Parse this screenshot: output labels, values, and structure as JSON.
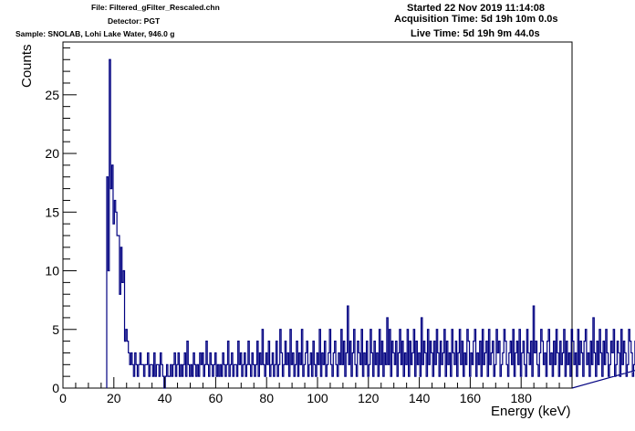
{
  "header": {
    "file": "File: Filtered_gFilter_Rescaled.chn",
    "detector": "Detector: PGT",
    "sample": "Sample: SNOLAB, Lohi Lake Water, 946.0 g",
    "started": "Started 22 Nov 2019 11:14:08",
    "acquisition_time": "Acquisition Time: 5d 19h 10m 0.0s",
    "live_time": "Live Time: 5d 19h 9m 44.0s"
  },
  "colors": {
    "spectrum": "#000080",
    "background_fill": "#ffffff",
    "axis": "#000000"
  },
  "chart_data": {
    "type": "histogram",
    "xlabel": "Energy (keV)",
    "ylabel": "Counts",
    "xlim": [
      0,
      200
    ],
    "ylim": [
      0,
      29.5
    ],
    "x_ticks": [
      0,
      20,
      40,
      60,
      80,
      100,
      120,
      140,
      160,
      180
    ],
    "y_ticks": [
      0,
      5,
      10,
      15,
      20,
      25
    ],
    "bin_width": 0.5,
    "bin_start": 17.2,
    "legend": "none",
    "grid": false,
    "counts": [
      18,
      10,
      28,
      17,
      19,
      14,
      16,
      15,
      13,
      13,
      8,
      12,
      9,
      10,
      4,
      5,
      4,
      3,
      2,
      3,
      2,
      1,
      3,
      2,
      1,
      2,
      3,
      2,
      2,
      1,
      2,
      2,
      3,
      1,
      2,
      2,
      1,
      3,
      1,
      2,
      2,
      1,
      3,
      2,
      1,
      0,
      1,
      2,
      1,
      1,
      2,
      1,
      2,
      3,
      1,
      2,
      3,
      1,
      2,
      1,
      2,
      3,
      1,
      4,
      2,
      1,
      2,
      1,
      3,
      2,
      1,
      2,
      1,
      3,
      2,
      3,
      1,
      2,
      4,
      2,
      1,
      3,
      2,
      1,
      2,
      3,
      1,
      2,
      1,
      2,
      1,
      3,
      2,
      1,
      2,
      4,
      1,
      2,
      3,
      1,
      2,
      2,
      1,
      4,
      2,
      3,
      1,
      2,
      3,
      1,
      2,
      4,
      2,
      1,
      3,
      2,
      1,
      2,
      4,
      1,
      3,
      2,
      5,
      2,
      1,
      3,
      2,
      4,
      1,
      2,
      3,
      1,
      2,
      4,
      1,
      2,
      5,
      3,
      1,
      2,
      4,
      2,
      3,
      1,
      5,
      2,
      3,
      1,
      2,
      4,
      1,
      3,
      2,
      5,
      1,
      2,
      3,
      4,
      1,
      2,
      3,
      1,
      4,
      2,
      1,
      3,
      2,
      5,
      1,
      3,
      2,
      4,
      1,
      2,
      3,
      5,
      2,
      1,
      3,
      4,
      2,
      1,
      3,
      2,
      5,
      2,
      4,
      1,
      3,
      7,
      2,
      4,
      1,
      3,
      5,
      2,
      1,
      4,
      3,
      2,
      5,
      1,
      3,
      2,
      4,
      1,
      2,
      5,
      3,
      1,
      4,
      2,
      3,
      1,
      5,
      2,
      4,
      1,
      3,
      2,
      6,
      2,
      5,
      1,
      4,
      3,
      2,
      4,
      1,
      3,
      5,
      2,
      4,
      1,
      3,
      2,
      5,
      1,
      4,
      2,
      3,
      5,
      1,
      4,
      2,
      3,
      1,
      6,
      2,
      4,
      3,
      1,
      5,
      2,
      4,
      3,
      1,
      4,
      2,
      5,
      3,
      1,
      4,
      2,
      3,
      5,
      1,
      4,
      2,
      3,
      1,
      5,
      3,
      2,
      4,
      1,
      3,
      5,
      2,
      4,
      1,
      3,
      2,
      5,
      4,
      1,
      3,
      2,
      4,
      5,
      1,
      3,
      2,
      4,
      1,
      5,
      2,
      3,
      4,
      1,
      5,
      2,
      3,
      4,
      1,
      2,
      5,
      3,
      4,
      1,
      2,
      3,
      5,
      4,
      2,
      1,
      3,
      4,
      2,
      5,
      1,
      3,
      4,
      2,
      5,
      1,
      3,
      4,
      2,
      1,
      5,
      3,
      2,
      4,
      1,
      7,
      3,
      4,
      2,
      1,
      3,
      5,
      4,
      2,
      3,
      1,
      4,
      5,
      2,
      3,
      1,
      4,
      2,
      5,
      3,
      1,
      4,
      2,
      3,
      5,
      1,
      4,
      2,
      3,
      1,
      5,
      4,
      2,
      3,
      1,
      5,
      2,
      4,
      3,
      1,
      4,
      5,
      2,
      3,
      1,
      4,
      2,
      6,
      3,
      1,
      4,
      2,
      5,
      3,
      1,
      4,
      2,
      5,
      3,
      1,
      2,
      4,
      3,
      5,
      1,
      2,
      4,
      3,
      1,
      5,
      2,
      4,
      3,
      1,
      2,
      5,
      4,
      3,
      1,
      2,
      4,
      3,
      5,
      1,
      2,
      4,
      3,
      1,
      5,
      2,
      3,
      4,
      1,
      2,
      5,
      3,
      4,
      1,
      2,
      3,
      5,
      4,
      1,
      2,
      3,
      4,
      5,
      1,
      3,
      2,
      4,
      1,
      5,
      3,
      2,
      4,
      1,
      3,
      5,
      2,
      4,
      1,
      3,
      2,
      5,
      4,
      1,
      3,
      2,
      4,
      5,
      1,
      2,
      3,
      4,
      1,
      5,
      2,
      3,
      8,
      1,
      2,
      4,
      3,
      1,
      5,
      2,
      4,
      3,
      1,
      2,
      5,
      4,
      3,
      1,
      2,
      4,
      5,
      3,
      1,
      2,
      4,
      3,
      5,
      1,
      2,
      4,
      3,
      1,
      5,
      2,
      4,
      3,
      1,
      2,
      5,
      4,
      3,
      1,
      2,
      3,
      4,
      5,
      1,
      2,
      3,
      4,
      1,
      5,
      2,
      3,
      4,
      1,
      2,
      3,
      5
    ]
  }
}
